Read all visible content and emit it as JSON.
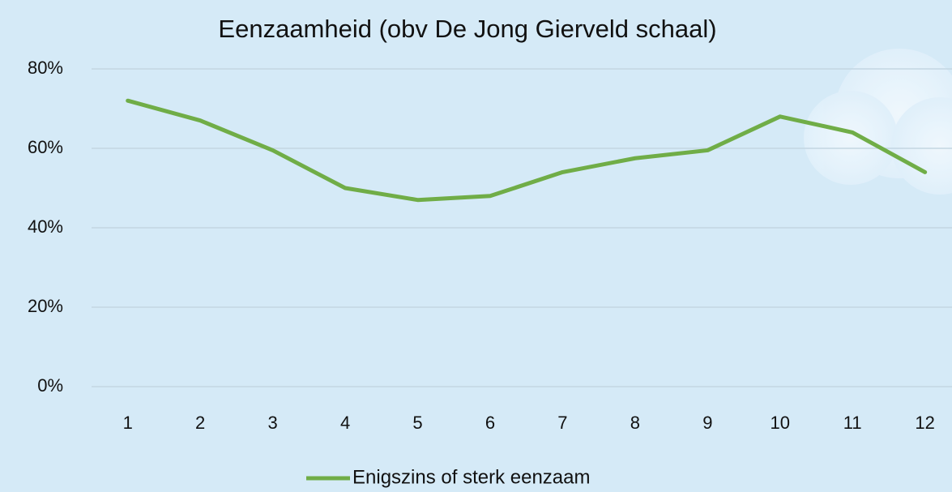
{
  "chart_data": {
    "type": "line",
    "title": "Eenzaamheid (obv De Jong Gierveld schaal)",
    "categories": [
      "1",
      "2",
      "3",
      "4",
      "5",
      "6",
      "7",
      "8",
      "9",
      "10",
      "11",
      "12"
    ],
    "series": [
      {
        "name": "Enigszins of sterk eenzaam",
        "color": "#70ad47",
        "values": [
          72,
          67,
          59.5,
          50,
          47,
          48,
          54,
          57.5,
          59.5,
          68,
          64,
          54
        ]
      }
    ],
    "ylim": [
      0,
      80
    ],
    "yticks": [
      {
        "value": 0,
        "label": "0%"
      },
      {
        "value": 20,
        "label": "20%"
      },
      {
        "value": 40,
        "label": "40%"
      },
      {
        "value": 60,
        "label": "60%"
      },
      {
        "value": 80,
        "label": "80%"
      }
    ],
    "grid": true,
    "legend": "bottom"
  }
}
